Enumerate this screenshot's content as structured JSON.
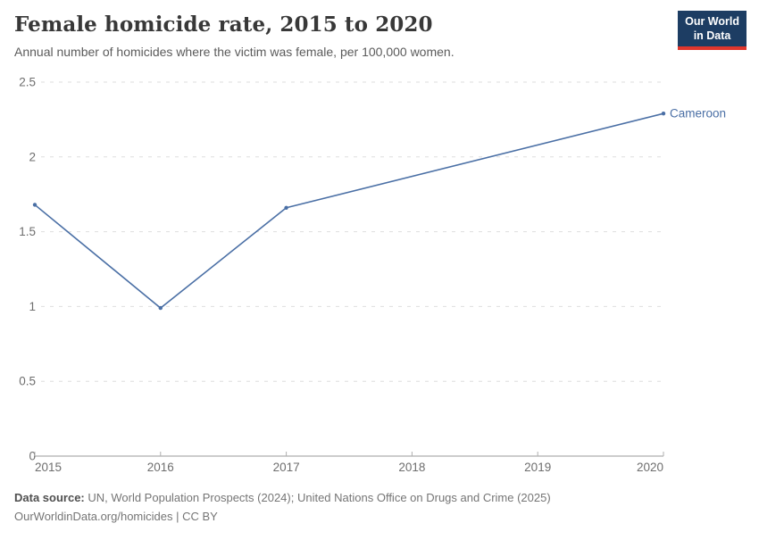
{
  "header": {
    "title": "Female homicide rate, 2015 to 2020",
    "subtitle": "Annual number of homicides where the victim was female, per 100,000 women.",
    "logo": {
      "line1": "Our World",
      "line2": "in Data",
      "bg_color": "#1d3d63",
      "accent_color": "#e0362c"
    }
  },
  "chart_data": {
    "type": "line",
    "title": "Female homicide rate, 2015 to 2020",
    "xlabel": "",
    "ylabel": "",
    "xlim": [
      2015,
      2020
    ],
    "ylim": [
      0,
      2.5
    ],
    "x_ticks": [
      2015,
      2016,
      2017,
      2018,
      2019,
      2020
    ],
    "y_ticks": [
      0,
      0.5,
      1,
      1.5,
      2,
      2.5
    ],
    "grid": "horizontal-dashed",
    "legend_position": "end-of-line-label",
    "series": [
      {
        "name": "Cameroon",
        "color": "#4a6fa5",
        "points": [
          {
            "x": 2015,
            "y": 1.68
          },
          {
            "x": 2016,
            "y": 0.99
          },
          {
            "x": 2017,
            "y": 1.66
          },
          {
            "x": 2020,
            "y": 2.29
          }
        ]
      }
    ],
    "colors": {
      "gridline": "#dedede",
      "axis": "#9a9a9a",
      "tick": "#afafaf",
      "tick_label": "#6e6e6e"
    }
  },
  "footer": {
    "datasource_label": "Data source:",
    "datasource_text": " UN, World Population Prospects (2024); United Nations Office on Drugs and Crime (2025)",
    "license_text": "OurWorldinData.org/homicides | CC BY"
  }
}
